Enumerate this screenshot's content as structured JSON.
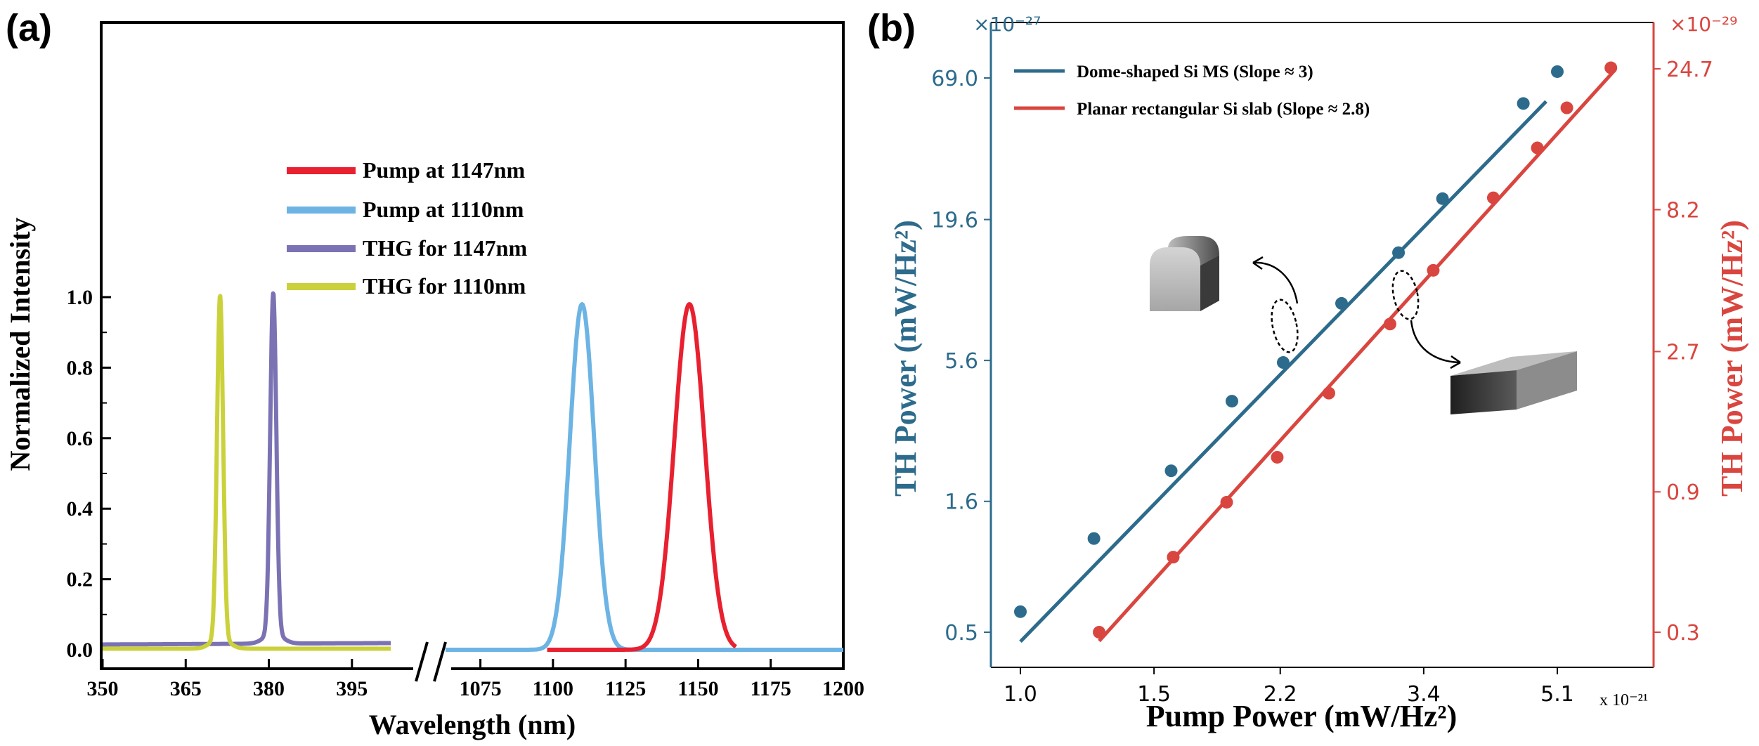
{
  "colors": {
    "pump1147": "#e8202f",
    "pump1110": "#6cb4e4",
    "thg1147": "#7b72b4",
    "thg1110": "#cbd13a",
    "blue": "#2d6b8c",
    "red": "#d9463f"
  },
  "chart_data": [
    {
      "panel": "(a)",
      "type": "line",
      "xlabel": "Wavelength (nm)",
      "ylabel": "Normalized Intensity",
      "x_broken_axis": true,
      "x_segments": [
        {
          "range": [
            350,
            402
          ],
          "ticks": [
            "350",
            "365",
            "380",
            "395"
          ]
        },
        {
          "range": [
            1063,
            1200
          ],
          "ticks": [
            "1075",
            "1100",
            "1125",
            "1150",
            "1175",
            "1200"
          ]
        }
      ],
      "ylim": [
        -0.02,
        1.06
      ],
      "yticks": [
        "0.0",
        "0.2",
        "0.4",
        "0.6",
        "0.8",
        "1.0"
      ],
      "legend_position": "upper-center",
      "series": [
        {
          "name": "Pump at 1147nm",
          "segment": 1,
          "shape": "gaussian",
          "peak_x": 1147,
          "peak_y": 0.98,
          "width_nm": 5.2,
          "x_range": [
            1098,
            1163
          ]
        },
        {
          "name": "Pump at 1110nm",
          "segment": 1,
          "shape": "gaussian",
          "peak_x": 1110,
          "peak_y": 0.98,
          "width_nm": 4.2,
          "x_range": [
            1063,
            1200
          ]
        },
        {
          "name": "THG for 1147nm",
          "segment": 0,
          "shape": "sharp-peak",
          "peak_x": 380.8,
          "peak_y": 0.98,
          "baseline": 0.015,
          "x_range": [
            350,
            402
          ]
        },
        {
          "name": "THG for 1110nm",
          "segment": 0,
          "shape": "sharp-peak",
          "peak_x": 371.2,
          "peak_y": 0.975,
          "baseline": 0.003,
          "x_range": [
            350,
            402
          ]
        }
      ]
    },
    {
      "panel": "(b)",
      "type": "scatter",
      "xlabel": "Pump Power (mW/Hz²)",
      "x_multiplier": "x 10⁻²¹",
      "xscale": "log",
      "xlim": [
        0.88,
        7.2
      ],
      "xticks": [
        1.0,
        1.5,
        2.2,
        3.4,
        5.1
      ],
      "xtick_labels": [
        "1.0",
        "1.5",
        "2.2",
        "3.4",
        "5.1"
      ],
      "ylabel_left": "TH Power (mW/Hz²)",
      "ylabel_right": "TH Power (mW/Hz²)",
      "y_left_multiplier": "×10⁻²⁷",
      "y_right_multiplier": "×10⁻²⁹",
      "yscale": "log",
      "y_left_ticks": [
        0.5,
        1.6,
        5.6,
        19.6,
        69.0
      ],
      "y_left_tick_labels": [
        "0.5",
        "1.6",
        "5.6",
        "19.6",
        "69.0"
      ],
      "y_right_ticks": [
        0.3,
        0.9,
        2.7,
        8.2,
        24.7
      ],
      "y_right_tick_labels": [
        "0.3",
        "0.9",
        "2.7",
        "8.2",
        "24.7"
      ],
      "legend_position": "upper-left",
      "series": [
        {
          "name": "Dome-shaped Si MS (Slope ≈ 3)",
          "axis": "left",
          "x": [
            1.0,
            1.25,
            1.58,
            1.9,
            2.22,
            2.65,
            3.15,
            3.6,
            4.6,
            5.1
          ],
          "y": [
            0.6,
            1.15,
            2.1,
            3.9,
            5.5,
            9.3,
            14.6,
            23.6,
            55,
            73
          ],
          "fit_x": [
            1.0,
            4.93
          ],
          "fit_y": [
            0.46,
            56
          ]
        },
        {
          "name": "Planar rectangular Si slab (Slope ≈ 2.8)",
          "axis": "right",
          "x": [
            1.27,
            1.59,
            1.87,
            2.18,
            2.55,
            3.07,
            3.5,
            4.2,
            4.8,
            5.25,
            6.0
          ],
          "y": [
            0.3,
            0.54,
            0.83,
            1.18,
            1.95,
            3.35,
            5.1,
            9.0,
            13.3,
            18.2,
            24.9
          ],
          "fit_x": [
            1.27,
            6.05
          ],
          "fit_y": [
            0.28,
            24.2
          ]
        }
      ]
    }
  ]
}
